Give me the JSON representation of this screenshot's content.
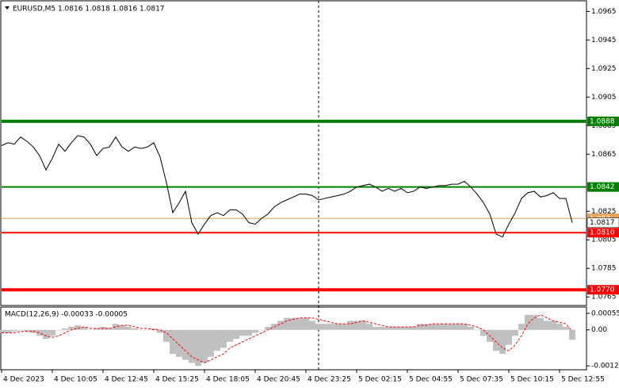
{
  "chart_data": [
    {
      "type": "line",
      "title": "EURUSD,M5  1.0816 1.0818 1.0816 1.0817",
      "color": "#000000",
      "categories": [
        "4 Dec 2023",
        null,
        null,
        null,
        null,
        null,
        null,
        null,
        "4 Dec 10:05",
        null,
        null,
        null,
        null,
        null,
        null,
        null,
        "4 Dec 12:45",
        null,
        null,
        null,
        null,
        null,
        null,
        null,
        "4 Dec 15:25",
        null,
        null,
        null,
        null,
        null,
        null,
        null,
        "4 Dec 18:05",
        null,
        null,
        null,
        null,
        null,
        null,
        null,
        "4 Dec 20:45",
        null,
        null,
        null,
        null,
        null,
        null,
        null,
        "4 Dec 23:25",
        null,
        null,
        null,
        null,
        null,
        null,
        null,
        "5 Dec 02:15",
        null,
        null,
        null,
        null,
        null,
        null,
        null,
        "5 Dec 04:55",
        null,
        null,
        null,
        null,
        null,
        null,
        null,
        "5 Dec 07:35",
        null,
        null,
        null,
        null,
        null,
        null,
        null,
        "5 Dec 10:15",
        null,
        null,
        null,
        null,
        null,
        null,
        null,
        "5 Dec 12:55",
        null,
        null
      ],
      "values": [
        1.0871,
        1.0873,
        1.0872,
        1.0877,
        1.0874,
        1.087,
        1.0864,
        1.0854,
        1.0862,
        1.0872,
        1.0867,
        1.0873,
        1.0878,
        1.0877,
        1.0872,
        1.0864,
        1.0869,
        1.087,
        1.0877,
        1.087,
        1.0867,
        1.087,
        1.0869,
        1.087,
        1.0873,
        1.0863,
        1.0845,
        1.0824,
        1.0831,
        1.0839,
        1.0817,
        1.0809,
        1.0816,
        1.0822,
        1.0824,
        1.0822,
        1.0826,
        1.0826,
        1.0823,
        1.0817,
        1.0816,
        1.082,
        1.0823,
        1.0828,
        1.0831,
        1.0833,
        1.0835,
        1.0837,
        1.0837,
        1.0836,
        1.0833,
        1.0834,
        1.0835,
        1.0836,
        1.0837,
        1.0839,
        1.0842,
        1.0843,
        1.0844,
        1.0842,
        1.0839,
        1.0841,
        1.0839,
        1.0841,
        1.0838,
        1.0839,
        1.0842,
        1.0841,
        1.0842,
        1.0843,
        1.0843,
        1.0844,
        1.0844,
        1.0846,
        1.0842,
        1.0837,
        1.0831,
        1.0823,
        1.0809,
        1.0807,
        1.0816,
        1.0824,
        1.0834,
        1.0838,
        1.0839,
        1.0835,
        1.0836,
        1.0838,
        1.0834,
        1.0834,
        1.0817
      ],
      "ylim": [
        1.0759,
        1.0973
      ],
      "yticks": [
        1.0965,
        1.0945,
        1.0925,
        1.0905,
        1.0885,
        1.0865,
        1.0825,
        1.0805,
        1.0785,
        1.0765
      ],
      "levels": [
        {
          "value": 1.082,
          "color": "#e8a050",
          "width": 1
        },
        {
          "value": 1.0888,
          "color": "#008000",
          "width": 4
        },
        {
          "value": 1.0842,
          "color": "#008000",
          "width": 2
        },
        {
          "value": 1.081,
          "label": "1.0810",
          "color": "#ff0000",
          "width": 2
        },
        {
          "value": 1.077,
          "label": "1.0770",
          "color": "#ff0000",
          "width": 4
        }
      ]
    },
    {
      "type": "macd",
      "title": "MACD(12,26,9) -0.00033 -0.00005",
      "series": [
        {
          "color": "#c0c0c0",
          "values": [
            -0.0001,
            -0.0001,
            -5e-05,
            0,
            -5e-05,
            -0.0001,
            -0.0002,
            -0.0003,
            -0.0002,
            0,
            5e-05,
            0.0001,
            0.00015,
            0.0001,
            0,
            5e-05,
            0.0001,
            5e-05,
            0.0002,
            0.00015,
            0.0001,
            5e-05,
            0,
            0,
            5e-05,
            -0.0001,
            -0.0004,
            -0.0008,
            -0.0009,
            -0.001,
            -0.0011,
            -0.0012,
            -0.0011,
            -0.0009,
            -0.0007,
            -0.0006,
            -0.0004,
            -0.0003,
            -0.0002,
            -0.0002,
            -0.0001,
            0,
            0.0001,
            0.0002,
            0.0003,
            0.0004,
            0.0004,
            0.0004,
            0.0004,
            0.0003,
            0.0002,
            0.0002,
            0.0002,
            0.0002,
            0.0002,
            0.0003,
            0.0003,
            0.0003,
            0.0002,
            0.0001,
            0.0001,
            0.0001,
            0.0001,
            0.0001,
            0.0001,
            0.0001,
            0.0002,
            0.0002,
            0.0002,
            0.0002,
            0.0002,
            0.0002,
            0.0002,
            0.0002,
            0.0001,
            0,
            -0.0002,
            -0.0004,
            -0.0007,
            -0.0008,
            -0.0005,
            -0.0002,
            0.0002,
            0.0005,
            0.0005,
            0.0004,
            0.0003,
            0.0003,
            0.0002,
            0.0001,
            -0.00033
          ]
        },
        {
          "color": "#ff0000",
          "values": [
            -0.0001,
            -0.0001,
            -0.0001,
            -5e-05,
            -5e-05,
            -5e-05,
            -0.0001,
            -0.0002,
            -0.00025,
            -0.0002,
            -0.0001,
            0,
            5e-05,
            0.0001,
            5e-05,
            5e-05,
            5e-05,
            5e-05,
            0.0001,
            0.00015,
            0.00015,
            0.0001,
            5e-05,
            5e-05,
            0,
            0,
            -0.0001,
            -0.0003,
            -0.0005,
            -0.0007,
            -0.0009,
            -0.001,
            -0.0011,
            -0.001,
            -0.0009,
            -0.0008,
            -0.0006,
            -0.0005,
            -0.0004,
            -0.0003,
            -0.0002,
            -0.0001,
            0,
            0.0001,
            0.0002,
            0.0003,
            0.00035,
            0.0004,
            0.0004,
            0.0004,
            0.00035,
            0.0003,
            0.00025,
            0.0002,
            0.0002,
            0.0002,
            0.00025,
            0.0003,
            0.00025,
            0.0002,
            0.00015,
            0.0001,
            0.0001,
            0.0001,
            0.0001,
            0.0001,
            0.00015,
            0.00015,
            0.0002,
            0.0002,
            0.0002,
            0.0002,
            0.0002,
            0.0002,
            0.00015,
            0.0001,
            0,
            -0.0002,
            -0.0004,
            -0.0006,
            -0.0007,
            -0.0005,
            -0.0002,
            0.0002,
            0.0004,
            0.0005,
            0.0004,
            0.0003,
            0.00025,
            0.0002,
            -5e-05
          ]
        }
      ],
      "ylim": [
        -0.00133,
        0.00076
      ],
      "yticks": [
        0.00055,
        {
          "value": 0,
          "label": "0.00"
        },
        -0.0012
      ]
    }
  ]
}
